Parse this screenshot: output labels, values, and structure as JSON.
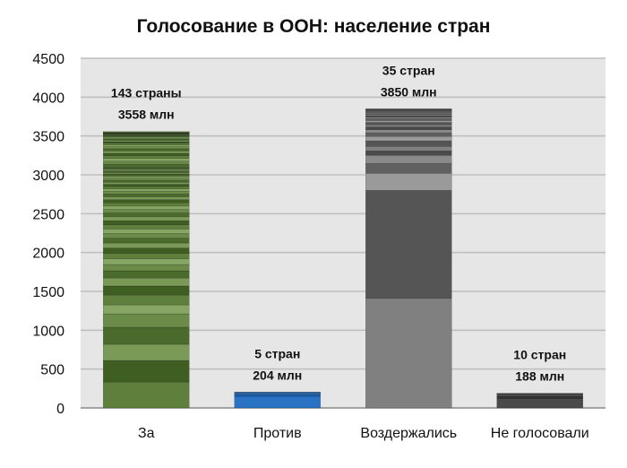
{
  "chart_data": {
    "type": "bar",
    "stacked": true,
    "title": "Голосование в ООН: население стран",
    "xlabel": "",
    "ylabel": "",
    "ylim": [
      0,
      4500
    ],
    "yticks": [
      "0",
      "500",
      "1000",
      "1500",
      "2000",
      "2500",
      "3000",
      "3500",
      "4000",
      "4500"
    ],
    "grid": true,
    "categories": [
      "За",
      "Против",
      "Воздержались",
      "Не голосовали"
    ],
    "totals": [
      3558,
      204,
      3850,
      188
    ],
    "data_labels": [
      {
        "line1": "143 страны",
        "line2": "3558 млн"
      },
      {
        "line1": "5 стран",
        "line2": "204 млн"
      },
      {
        "line1": "35 стран",
        "line2": "3850 млн"
      },
      {
        "line1": "10 стран",
        "line2": "188 млн"
      }
    ],
    "segments": [
      [
        334,
        277,
        208,
        219,
        173,
        115,
        127,
        116,
        103,
        93,
        80,
        75,
        70,
        68,
        65,
        62,
        60,
        58,
        55,
        52,
        50,
        48,
        46,
        44,
        42,
        40,
        38,
        36,
        34,
        32,
        30,
        28,
        26,
        25,
        24,
        22,
        20,
        18,
        16,
        15,
        14,
        12,
        10,
        9,
        8,
        40,
        38,
        36,
        34,
        32,
        30,
        28,
        26,
        24,
        22,
        20,
        18,
        16,
        14,
        12,
        10,
        8,
        7,
        6,
        5,
        5,
        4,
        4,
        3,
        3,
        2,
        2,
        2,
        1,
        1,
        8
      ],
      [
        150,
        30,
        15,
        5,
        4
      ],
      [
        1410,
        1390,
        220,
        127,
        104,
        57,
        58,
        71,
        58,
        46,
        40,
        35,
        30,
        28,
        25,
        22,
        20,
        18,
        16,
        14,
        12,
        10,
        9,
        8,
        7,
        6,
        5,
        4
      ],
      [
        120,
        30,
        20,
        10,
        8
      ]
    ],
    "colors": [
      [
        "#5e803c",
        "#3f5f22",
        "#7a9a58",
        "#4a6b2b",
        "#6a8c48",
        "#86a664"
      ],
      [
        "#2a73c4",
        "#1f5fa8",
        "#3a86d4"
      ],
      [
        "#808080",
        "#555555",
        "#9a9a9a",
        "#606060",
        "#8a8a8a",
        "#4a4a4a"
      ],
      [
        "#4a4a4a",
        "#333333",
        "#5a5a5a"
      ]
    ],
    "top_colors": [
      "#a8c880",
      null,
      null,
      null
    ]
  }
}
